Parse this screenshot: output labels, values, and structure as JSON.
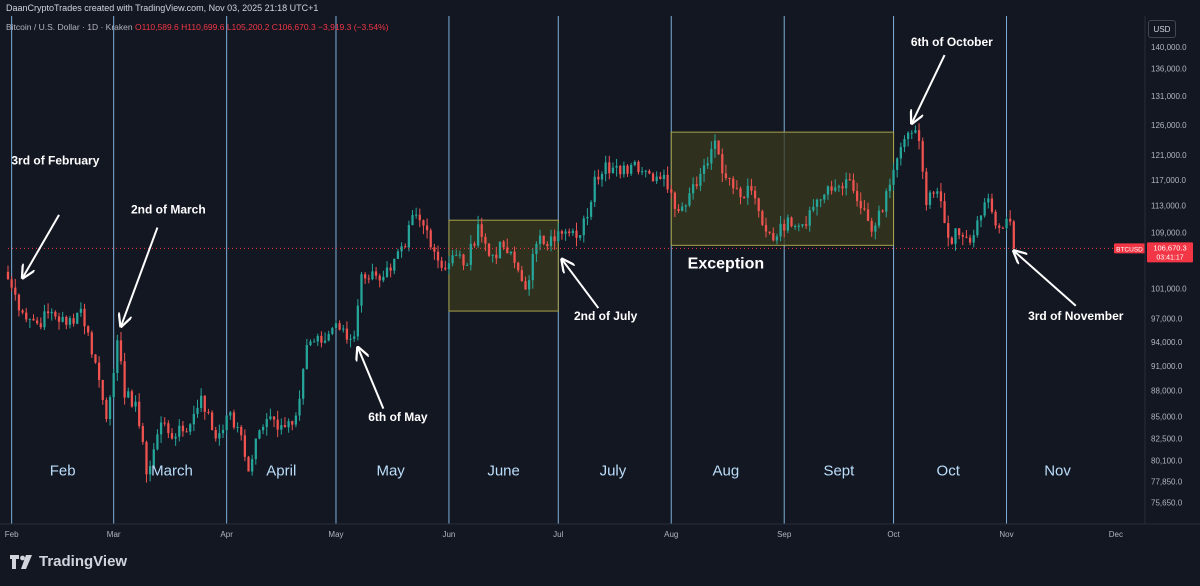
{
  "header": {
    "credit": "DaanCryptoTrades created with TradingView.com, Nov 03, 2025 21:18 UTC+1",
    "symbol": "Bitcoin / U.S. Dollar · 1D · Kraken",
    "ohlc": "O110,589.6 H110,699.6 L105,200.2 C106,670.3 −3,919.3 (−3.54%)",
    "currency_button": "USD"
  },
  "footer": {
    "brand": "TradingView"
  },
  "colors": {
    "background": "#131722",
    "up": "#26a69a",
    "down": "#ef5350",
    "month_line": "#90caf9",
    "box_fill": "#3b3a1e",
    "box_border": "#a7a24a",
    "price_label": "#f23645",
    "text": "#d1d4dc",
    "annotation": "#ffffff"
  },
  "chart_data": {
    "type": "candlestick",
    "title": "",
    "xlabel": "",
    "ylabel": "",
    "y_scale": "log",
    "ylim": [
      73500,
      146000
    ],
    "x_range": [
      "2025-01-31",
      "2025-12-09"
    ],
    "y_ticks": [
      "140,000.0",
      "136,000.0",
      "131,000.0",
      "126,000.0",
      "121,000.0",
      "117,000.0",
      "113,000.0",
      "109,000.0",
      "101,000.0",
      "97,000.0",
      "94,000.0",
      "91,000.0",
      "88,000.0",
      "85,000.0",
      "82,500.0",
      "80,100.0",
      "77,850.0",
      "75,650.0"
    ],
    "x_ticks": [
      {
        "date": "2025-02-01",
        "label": "Feb"
      },
      {
        "date": "2025-03-01",
        "label": "Mar"
      },
      {
        "date": "2025-04-01",
        "label": "Apr"
      },
      {
        "date": "2025-05-01",
        "label": "May"
      },
      {
        "date": "2025-06-01",
        "label": "Jun"
      },
      {
        "date": "2025-07-01",
        "label": "Jul"
      },
      {
        "date": "2025-08-01",
        "label": "Aug"
      },
      {
        "date": "2025-09-01",
        "label": "Sep"
      },
      {
        "date": "2025-10-01",
        "label": "Oct"
      },
      {
        "date": "2025-11-01",
        "label": "Nov"
      },
      {
        "date": "2025-12-01",
        "label": "Dec"
      }
    ],
    "month_lines": [
      "2025-02-01",
      "2025-03-01",
      "2025-04-01",
      "2025-05-01",
      "2025-06-01",
      "2025-07-01",
      "2025-08-01",
      "2025-09-01",
      "2025-10-01",
      "2025-11-01"
    ],
    "month_labels": [
      {
        "date": "2025-02-15",
        "label": "Feb"
      },
      {
        "date": "2025-03-17",
        "label": "March"
      },
      {
        "date": "2025-04-16",
        "label": "April"
      },
      {
        "date": "2025-05-16",
        "label": "May"
      },
      {
        "date": "2025-06-16",
        "label": "June"
      },
      {
        "date": "2025-07-16",
        "label": "July"
      },
      {
        "date": "2025-08-16",
        "label": "Aug"
      },
      {
        "date": "2025-09-16",
        "label": "Sept"
      },
      {
        "date": "2025-10-16",
        "label": "Oct"
      },
      {
        "date": "2025-11-15",
        "label": "Nov"
      }
    ],
    "month_label_price": 78500,
    "last_price": {
      "label": "BTCUSD",
      "value": "106,670.3",
      "countdown": "03:41:17",
      "price": 106670
    },
    "boxes": [
      {
        "from": "2025-06-01",
        "to": "2025-07-01",
        "top": 110800,
        "bottom": 98000
      },
      {
        "from": "2025-08-01",
        "to": "2025-10-01",
        "top": 124800,
        "bottom": 107100
      }
    ],
    "box_labels": [
      {
        "text": "Exception",
        "date": "2025-08-16",
        "price": 103800
      }
    ],
    "annotations": [
      {
        "text": "3rd of February",
        "text_date": "2025-02-13",
        "text_price": 119500,
        "arrow_from": [
          "2025-02-14",
          111600
        ],
        "arrow_to": [
          "2025-02-04",
          102500
        ]
      },
      {
        "text": "2nd of March",
        "text_date": "2025-03-16",
        "text_price": 111800,
        "arrow_from": [
          "2025-03-13",
          109700
        ],
        "arrow_to": [
          "2025-03-03",
          96000
        ]
      },
      {
        "text": "6th of May",
        "text_date": "2025-05-18",
        "text_price": 84500,
        "arrow_from": [
          "2025-05-14",
          85900
        ],
        "arrow_to": [
          "2025-05-07",
          93300
        ]
      },
      {
        "text": "2nd of July",
        "text_date": "2025-07-14",
        "text_price": 96800,
        "arrow_from": [
          "2025-07-12",
          98400
        ],
        "arrow_to": [
          "2025-07-02",
          105100
        ]
      },
      {
        "text": "6th of October",
        "text_date": "2025-10-17",
        "text_price": 140200,
        "arrow_from": [
          "2025-10-15",
          138500
        ],
        "arrow_to": [
          "2025-10-06",
          126300
        ]
      },
      {
        "text": "3rd of November",
        "text_date": "2025-11-20",
        "text_price": 96800,
        "arrow_from": [
          "2025-11-20",
          98700
        ],
        "arrow_to": [
          "2025-11-03",
          106300
        ]
      }
    ],
    "closes": [
      {
        "date": "2025-01-31",
        "c": 102300
      },
      {
        "date": "2025-02-04",
        "c": 97800
      },
      {
        "date": "2025-02-08",
        "c": 96400
      },
      {
        "date": "2025-02-12",
        "c": 97900
      },
      {
        "date": "2025-02-16",
        "c": 96200
      },
      {
        "date": "2025-02-20",
        "c": 98300
      },
      {
        "date": "2025-02-24",
        "c": 91400
      },
      {
        "date": "2025-02-27",
        "c": 84700
      },
      {
        "date": "2025-03-02",
        "c": 94200
      },
      {
        "date": "2025-03-04",
        "c": 87200
      },
      {
        "date": "2025-03-07",
        "c": 86700
      },
      {
        "date": "2025-03-10",
        "c": 78600
      },
      {
        "date": "2025-03-14",
        "c": 84300
      },
      {
        "date": "2025-03-18",
        "c": 82700
      },
      {
        "date": "2025-03-22",
        "c": 84100
      },
      {
        "date": "2025-03-25",
        "c": 87400
      },
      {
        "date": "2025-03-29",
        "c": 82500
      },
      {
        "date": "2025-04-01",
        "c": 85100
      },
      {
        "date": "2025-04-04",
        "c": 83800
      },
      {
        "date": "2025-04-07",
        "c": 78900
      },
      {
        "date": "2025-04-09",
        "c": 82500
      },
      {
        "date": "2025-04-12",
        "c": 84700
      },
      {
        "date": "2025-04-16",
        "c": 84000
      },
      {
        "date": "2025-04-20",
        "c": 85100
      },
      {
        "date": "2025-04-23",
        "c": 93600
      },
      {
        "date": "2025-04-27",
        "c": 93900
      },
      {
        "date": "2025-05-01",
        "c": 96400
      },
      {
        "date": "2025-05-04",
        "c": 94300
      },
      {
        "date": "2025-05-06",
        "c": 94700
      },
      {
        "date": "2025-05-08",
        "c": 103000
      },
      {
        "date": "2025-05-12",
        "c": 102800
      },
      {
        "date": "2025-05-16",
        "c": 103500
      },
      {
        "date": "2025-05-20",
        "c": 106800
      },
      {
        "date": "2025-05-22",
        "c": 111600
      },
      {
        "date": "2025-05-26",
        "c": 109300
      },
      {
        "date": "2025-05-30",
        "c": 103900
      },
      {
        "date": "2025-06-03",
        "c": 105700
      },
      {
        "date": "2025-06-06",
        "c": 104300
      },
      {
        "date": "2025-06-09",
        "c": 110200
      },
      {
        "date": "2025-06-12",
        "c": 105600
      },
      {
        "date": "2025-06-16",
        "c": 106800
      },
      {
        "date": "2025-06-19",
        "c": 104600
      },
      {
        "date": "2025-06-22",
        "c": 100900
      },
      {
        "date": "2025-06-25",
        "c": 107300
      },
      {
        "date": "2025-06-29",
        "c": 108400
      },
      {
        "date": "2025-07-02",
        "c": 108800
      },
      {
        "date": "2025-07-06",
        "c": 108200
      },
      {
        "date": "2025-07-09",
        "c": 111300
      },
      {
        "date": "2025-07-11",
        "c": 117500
      },
      {
        "date": "2025-07-14",
        "c": 119800
      },
      {
        "date": "2025-07-18",
        "c": 117900
      },
      {
        "date": "2025-07-22",
        "c": 119900
      },
      {
        "date": "2025-07-26",
        "c": 118000
      },
      {
        "date": "2025-07-30",
        "c": 117800
      },
      {
        "date": "2025-08-02",
        "c": 112500
      },
      {
        "date": "2025-08-06",
        "c": 114900
      },
      {
        "date": "2025-08-10",
        "c": 119300
      },
      {
        "date": "2025-08-13",
        "c": 123400
      },
      {
        "date": "2025-08-16",
        "c": 117300
      },
      {
        "date": "2025-08-20",
        "c": 114300
      },
      {
        "date": "2025-08-23",
        "c": 115300
      },
      {
        "date": "2025-08-26",
        "c": 110100
      },
      {
        "date": "2025-08-30",
        "c": 108400
      },
      {
        "date": "2025-09-02",
        "c": 111200
      },
      {
        "date": "2025-09-06",
        "c": 110200
      },
      {
        "date": "2025-09-10",
        "c": 113900
      },
      {
        "date": "2025-09-14",
        "c": 115300
      },
      {
        "date": "2025-09-18",
        "c": 117100
      },
      {
        "date": "2025-09-22",
        "c": 112600
      },
      {
        "date": "2025-09-25",
        "c": 109100
      },
      {
        "date": "2025-09-28",
        "c": 112100
      },
      {
        "date": "2025-10-01",
        "c": 118600
      },
      {
        "date": "2025-10-03",
        "c": 122300
      },
      {
        "date": "2025-10-06",
        "c": 124700
      },
      {
        "date": "2025-10-08",
        "c": 123300
      },
      {
        "date": "2025-10-10",
        "c": 113100
      },
      {
        "date": "2025-10-13",
        "c": 115200
      },
      {
        "date": "2025-10-16",
        "c": 108200
      },
      {
        "date": "2025-10-19",
        "c": 108600
      },
      {
        "date": "2025-10-22",
        "c": 107500
      },
      {
        "date": "2025-10-25",
        "c": 111500
      },
      {
        "date": "2025-10-27",
        "c": 114100
      },
      {
        "date": "2025-10-29",
        "c": 110000
      },
      {
        "date": "2025-10-31",
        "c": 109600
      },
      {
        "date": "2025-11-02",
        "c": 110600
      },
      {
        "date": "2025-11-03",
        "c": 106670
      }
    ]
  }
}
